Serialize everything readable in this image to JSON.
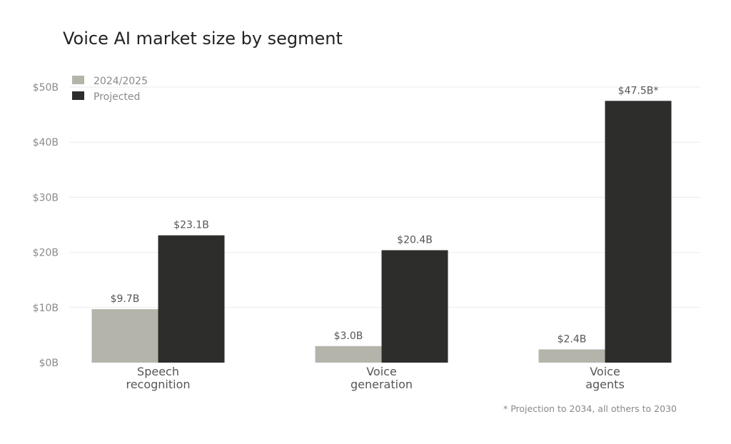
{
  "chart_data": {
    "type": "bar",
    "title": "Voice AI market size by segment",
    "categories": [
      [
        "Speech",
        "recognition"
      ],
      [
        "Voice",
        "generation"
      ],
      [
        "Voice",
        "agents"
      ]
    ],
    "series": [
      {
        "name": "2024/2025",
        "color": "#b5b4ab",
        "values": [
          9.7,
          3.0,
          2.4
        ],
        "labels": [
          "$9.7B",
          "$3.0B",
          "$2.4B"
        ]
      },
      {
        "name": "Projected",
        "color": "#2d2d2b",
        "values": [
          23.1,
          20.4,
          47.5
        ],
        "labels": [
          "$23.1B",
          "$20.4B",
          "$47.5B*"
        ]
      }
    ],
    "ylim": [
      0,
      50
    ],
    "yticks": [
      0,
      10,
      20,
      30,
      40,
      50
    ],
    "ytick_labels": [
      "$0B",
      "$10B",
      "$20B",
      "$30B",
      "$40B",
      "$50B"
    ],
    "grid": true,
    "legend": "top-left",
    "footnote": "* Projection to 2034, all others to 2030"
  }
}
